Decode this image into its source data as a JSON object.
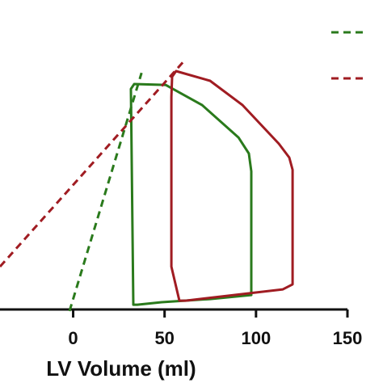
{
  "chart_data": {
    "type": "line",
    "xlabel": "LV Volume (ml)",
    "xlim": [
      -40,
      150
    ],
    "xticks": [
      0,
      50,
      100,
      150
    ],
    "ylim": [
      0,
      175
    ],
    "series": [
      {
        "color": "#2a7a1c",
        "dashed": false,
        "closed": true,
        "x": [
          32.9,
          31.6,
          33.4,
          50.6,
          70.5,
          90.4,
          96.1,
          97.4,
          97.4,
          74.9,
          48.4,
          35.1
        ],
        "values": [
          2.7,
          124.7,
          127.5,
          127,
          115.6,
          97.3,
          88.2,
          78.1,
          8.2,
          5.9,
          4.1,
          2.7
        ]
      },
      {
        "color": "#a01c22",
        "dashed": false,
        "closed": true,
        "x": [
          58.1,
          53.7,
          53.7,
          54.1,
          56.3,
          74.9,
          92.6,
          112.5,
          118.2,
          120.0,
          120.0,
          114.7,
          61.6
        ],
        "values": [
          5.0,
          24.2,
          120.1,
          131.6,
          134.8,
          129.3,
          115.6,
          93.7,
          85.9,
          79.0,
          14.2,
          11.4,
          5.0
        ]
      },
      {
        "color": "#2a7a1c",
        "dashed": true,
        "closed": false,
        "x": [
          -2.0,
          37.4
        ],
        "values": [
          -0.9,
          133.8
        ]
      },
      {
        "color": "#a01c22",
        "dashed": true,
        "closed": false,
        "x": [
          -40,
          61.6
        ],
        "values": [
          24.2,
          141.6
        ]
      }
    ]
  }
}
